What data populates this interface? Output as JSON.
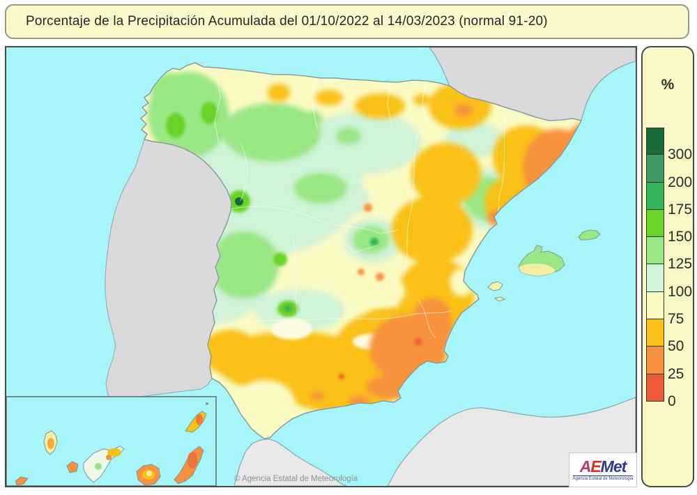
{
  "title": {
    "text": "Porcentaje de la Precipitación Acumulada del 01/10/2022 al 14/03/2023 (normal 91-20)"
  },
  "legend": {
    "unit": "%",
    "bins": [
      {
        "color": "#166b38",
        "bottom_label": "300"
      },
      {
        "color": "#3f9a68",
        "bottom_label": "200"
      },
      {
        "color": "#33b357",
        "bottom_label": "175"
      },
      {
        "color": "#68d428",
        "bottom_label": "150"
      },
      {
        "color": "#98e784",
        "bottom_label": "125"
      },
      {
        "color": "#d0f2d6",
        "bottom_label": "100"
      },
      {
        "color": "#f9f9c2",
        "bottom_label": "75"
      },
      {
        "color": "#f9c018",
        "bottom_label": "50"
      },
      {
        "color": "#f7923e",
        "bottom_label": "25"
      },
      {
        "color": "#ee5b3b",
        "bottom_label": "0"
      }
    ]
  },
  "map": {
    "copyright": "© Agencia Estatal de Meteorología",
    "palette": {
      "sea": "#a5f5f9",
      "neighbor_land": "#dadada",
      "africa_land": "#e8e8e6",
      "base": "#f9f9c2",
      "mint": "#d0f2d6",
      "light_green": "#98e784",
      "bright_green": "#68d428",
      "green": "#33b357",
      "dark_green": "#166b38",
      "amber": "#f9c018",
      "orange": "#f7923e",
      "red_orange": "#ee5b3b",
      "pale_patch": "#fbfbdf"
    }
  },
  "logo": {
    "part_a": "A",
    "part_e": "E",
    "part_met": "Met",
    "subtitle": "Agencia Estatal de Meteorología"
  },
  "chart_data": {
    "type": "heatmap",
    "subtype": "filled-contour precipitation percentage map of Spain",
    "title": "Porcentaje de la Precipitación Acumulada del 01/10/2022 al 14/03/2023 (normal 91-20)",
    "unit": "%",
    "legend_position": "right",
    "scale_percent_levels": [
      0,
      25,
      50,
      75,
      100,
      125,
      150,
      175,
      200,
      300
    ],
    "scale_colors_low_to_high": [
      "#ee5b3b",
      "#f7923e",
      "#f9c018",
      "#f9f9c2",
      "#d0f2d6",
      "#98e784",
      "#68d428",
      "#33b357",
      "#3f9a68",
      "#166b38"
    ]
  }
}
